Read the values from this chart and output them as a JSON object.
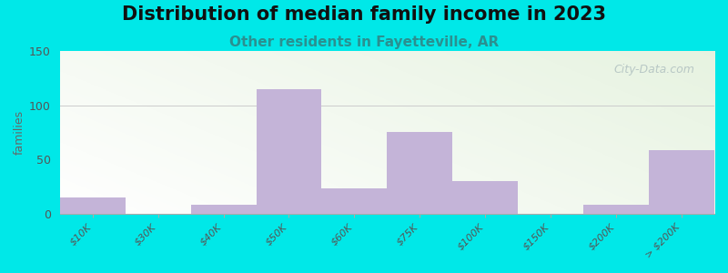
{
  "title": "Distribution of median family income in 2023",
  "subtitle": "Other residents in Fayetteville, AR",
  "ylabel": "families",
  "categories": [
    "$10K",
    "$30K",
    "$40K",
    "$50K",
    "$60K",
    "$75K",
    "$100K",
    "$150K",
    "$200K",
    "> $200K"
  ],
  "values": [
    15,
    0,
    8,
    115,
    23,
    75,
    30,
    0,
    8,
    58
  ],
  "bar_color": "#c4b4d8",
  "background_outer": "#00e8e8",
  "background_inner_topleft": "#e8f0d8",
  "background_inner_bottomright": "#f8faf2",
  "ylim": [
    0,
    150
  ],
  "yticks": [
    0,
    50,
    100,
    150
  ],
  "title_fontsize": 15,
  "subtitle_fontsize": 11,
  "subtitle_color": "#2a9090",
  "watermark": "City-Data.com",
  "watermark_color": "#b0c0c0"
}
